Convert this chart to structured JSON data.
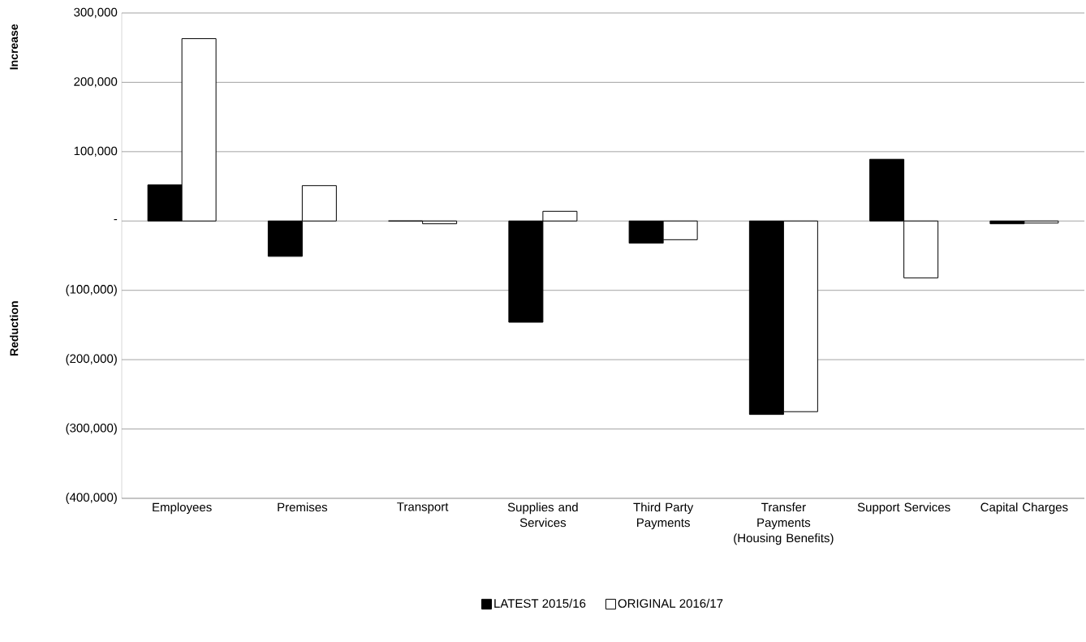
{
  "chart_data": {
    "type": "bar",
    "categories": [
      "Employees",
      "Premises",
      "Transport",
      "Supplies and Services",
      "Third Party Payments",
      "Transfer Payments (Housing Benefits)",
      "Support Services",
      "Capital Charges"
    ],
    "series": [
      {
        "name": "LATEST 2015/16",
        "color": "#000000",
        "values": [
          52000,
          -51000,
          0,
          -146000,
          -32000,
          -279000,
          89000,
          -4000
        ]
      },
      {
        "name": "ORIGINAL 2016/17",
        "color": "#ffffff",
        "values": [
          263000,
          51000,
          -4000,
          14000,
          -27000,
          -275000,
          -82000,
          -3000
        ]
      }
    ],
    "ylim": [
      -400000,
      300000
    ],
    "yticks": [
      {
        "value": -400000,
        "label": "(400,000)"
      },
      {
        "value": -300000,
        "label": "(300,000)"
      },
      {
        "value": -200000,
        "label": "(200,000)"
      },
      {
        "value": -100000,
        "label": "(100,000)"
      },
      {
        "value": 0,
        "label": "-"
      },
      {
        "value": 100000,
        "label": "100,000"
      },
      {
        "value": 200000,
        "label": "200,000"
      },
      {
        "value": 300000,
        "label": "300,000"
      }
    ],
    "grid": "y",
    "legend": "bottom",
    "annotations": [
      "Increase",
      "Reduction"
    ]
  }
}
